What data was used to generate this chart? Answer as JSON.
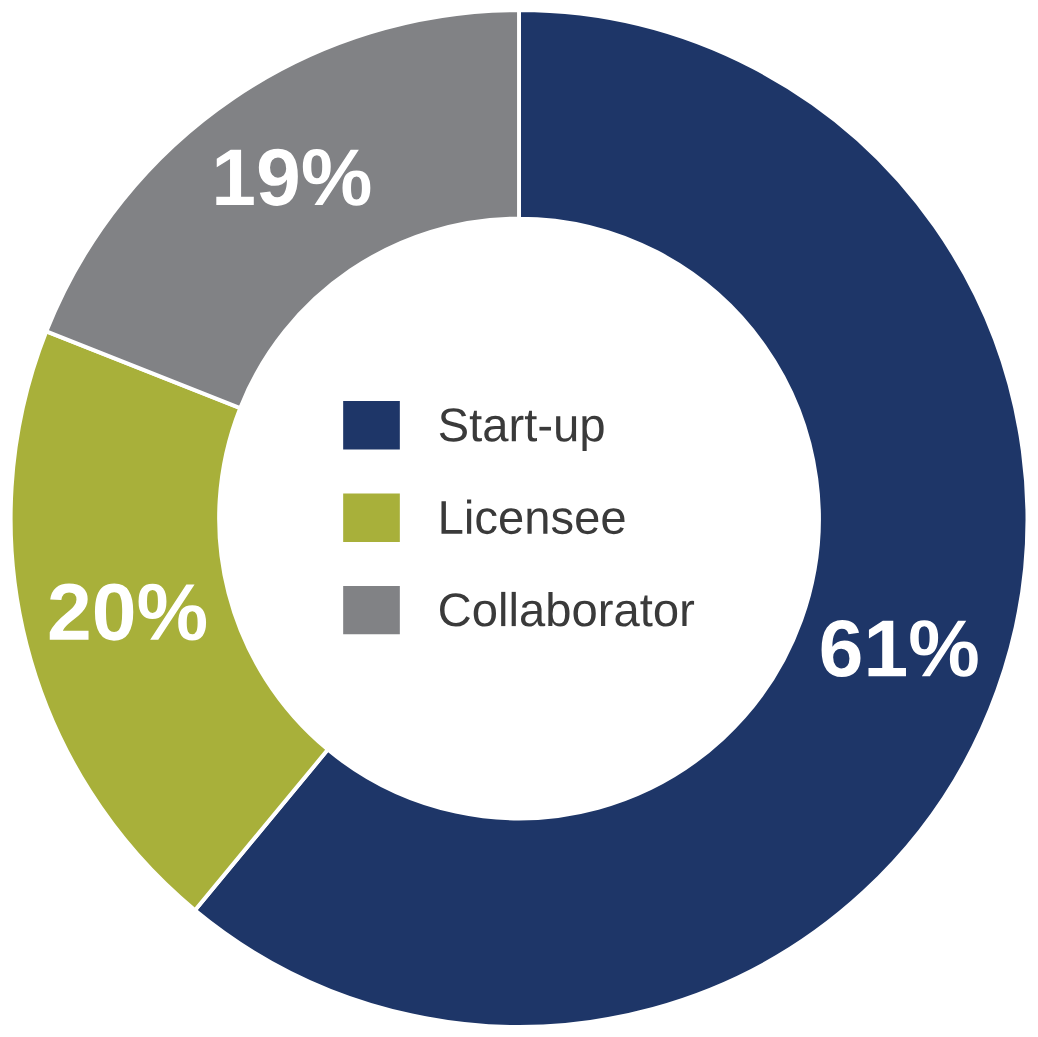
{
  "chart_data": {
    "type": "donut",
    "categories": [
      "Start-up",
      "Licensee",
      "Collaborator"
    ],
    "values": [
      61,
      20,
      19
    ],
    "colors": [
      "#1e3668",
      "#a8b03a",
      "#818285"
    ],
    "value_labels": [
      "61%",
      "20%",
      "19%"
    ],
    "legend": "center"
  }
}
